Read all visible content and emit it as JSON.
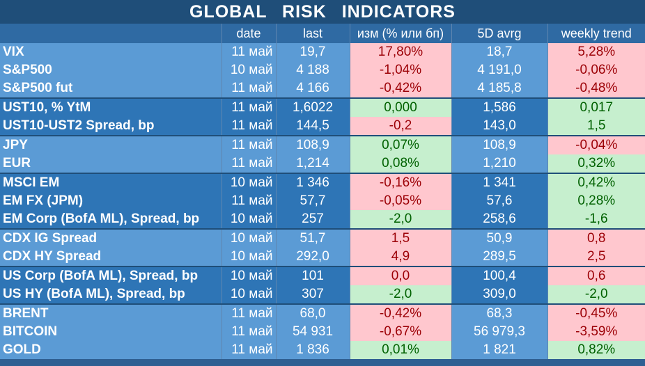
{
  "title": "GLOBAL   RISK   INDICATORS",
  "headers": [
    "",
    "date",
    "last",
    "изм (% или бп)",
    "5D avrg",
    "weekly trend"
  ],
  "rows": [
    {
      "name": "VIX",
      "date": "11 май",
      "last": "19,7",
      "chg": "17,80%",
      "chg_color": "neg",
      "avrg": "18,7",
      "trend": "5,28%",
      "trend_color": "neg",
      "group": "A"
    },
    {
      "name": "S&P500",
      "date": "10 май",
      "last": "4 188",
      "chg": "-1,04%",
      "chg_color": "neg",
      "avrg": "4 191,0",
      "trend": "-0,06%",
      "trend_color": "neg",
      "group": "A"
    },
    {
      "name": "S&P500 fut",
      "date": "11 май",
      "last": "4 166",
      "chg": "-0,42%",
      "chg_color": "neg",
      "avrg": "4 185,8",
      "trend": "-0,48%",
      "trend_color": "neg",
      "group": "A"
    },
    {
      "name": "UST10, % YtM",
      "date": "11 май",
      "last": "1,6022",
      "chg": "0,000",
      "chg_color": "pos",
      "avrg": "1,586",
      "trend": "0,017",
      "trend_color": "pos",
      "group": "B"
    },
    {
      "name": "UST10-UST2 Spread, bp",
      "date": "11 май",
      "last": "144,5",
      "chg": "-0,2",
      "chg_color": "neg",
      "avrg": "143,0",
      "trend": "1,5",
      "trend_color": "pos",
      "group": "B"
    },
    {
      "name": "JPY",
      "date": "11 май",
      "last": "108,9",
      "chg": "0,07%",
      "chg_color": "pos",
      "avrg": "108,9",
      "trend": "-0,04%",
      "trend_color": "neg",
      "group": "A"
    },
    {
      "name": "EUR",
      "date": "11 май",
      "last": "1,214",
      "chg": "0,08%",
      "chg_color": "pos",
      "avrg": "1,210",
      "trend": "0,32%",
      "trend_color": "pos",
      "group": "A"
    },
    {
      "name": "MSCI EM",
      "date": "10 май",
      "last": "1 346",
      "chg": "-0,16%",
      "chg_color": "neg",
      "avrg": "1 341",
      "trend": "0,42%",
      "trend_color": "pos",
      "group": "B"
    },
    {
      "name": "EM FX (JPM)",
      "date": "11 май",
      "last": "57,7",
      "chg": "-0,05%",
      "chg_color": "neg",
      "avrg": "57,6",
      "trend": "0,28%",
      "trend_color": "pos",
      "group": "B"
    },
    {
      "name": "EM Corp (BofA ML), Spread, bp",
      "date": "10 май",
      "last": "257",
      "chg": "-2,0",
      "chg_color": "pos",
      "avrg": "258,6",
      "trend": "-1,6",
      "trend_color": "pos",
      "group": "B"
    },
    {
      "name": "CDX IG Spread",
      "date": "10 май",
      "last": "51,7",
      "chg": "1,5",
      "chg_color": "neg",
      "avrg": "50,9",
      "trend": "0,8",
      "trend_color": "neg",
      "group": "A"
    },
    {
      "name": "CDX HY Spread",
      "date": "10 май",
      "last": "292,0",
      "chg": "4,9",
      "chg_color": "neg",
      "avrg": "289,5",
      "trend": "2,5",
      "trend_color": "neg",
      "group": "A"
    },
    {
      "name": "US Corp (BofA ML), Spread, bp",
      "date": "10 май",
      "last": "101",
      "chg": "0,0",
      "chg_color": "neg",
      "avrg": "100,4",
      "trend": "0,6",
      "trend_color": "neg",
      "group": "B"
    },
    {
      "name": "US HY (BofA ML), Spread, bp",
      "date": "10 май",
      "last": "307",
      "chg": "-2,0",
      "chg_color": "pos",
      "avrg": "309,0",
      "trend": "-2,0",
      "trend_color": "pos",
      "group": "B"
    },
    {
      "name": "BRENT",
      "date": "11 май",
      "last": "68,0",
      "chg": "-0,42%",
      "chg_color": "neg",
      "avrg": "68,3",
      "trend": "-0,45%",
      "trend_color": "neg",
      "group": "A"
    },
    {
      "name": "BITCOIN",
      "date": "11 май",
      "last": "54 931",
      "chg": "-0,67%",
      "chg_color": "neg",
      "avrg": "56 979,3",
      "trend": "-3,59%",
      "trend_color": "neg",
      "group": "A"
    },
    {
      "name": "GOLD",
      "date": "11 май",
      "last": "1 836",
      "chg": "0,01%",
      "chg_color": "pos",
      "avrg": "1 821",
      "trend": "0,82%",
      "trend_color": "pos",
      "group": "A"
    }
  ]
}
